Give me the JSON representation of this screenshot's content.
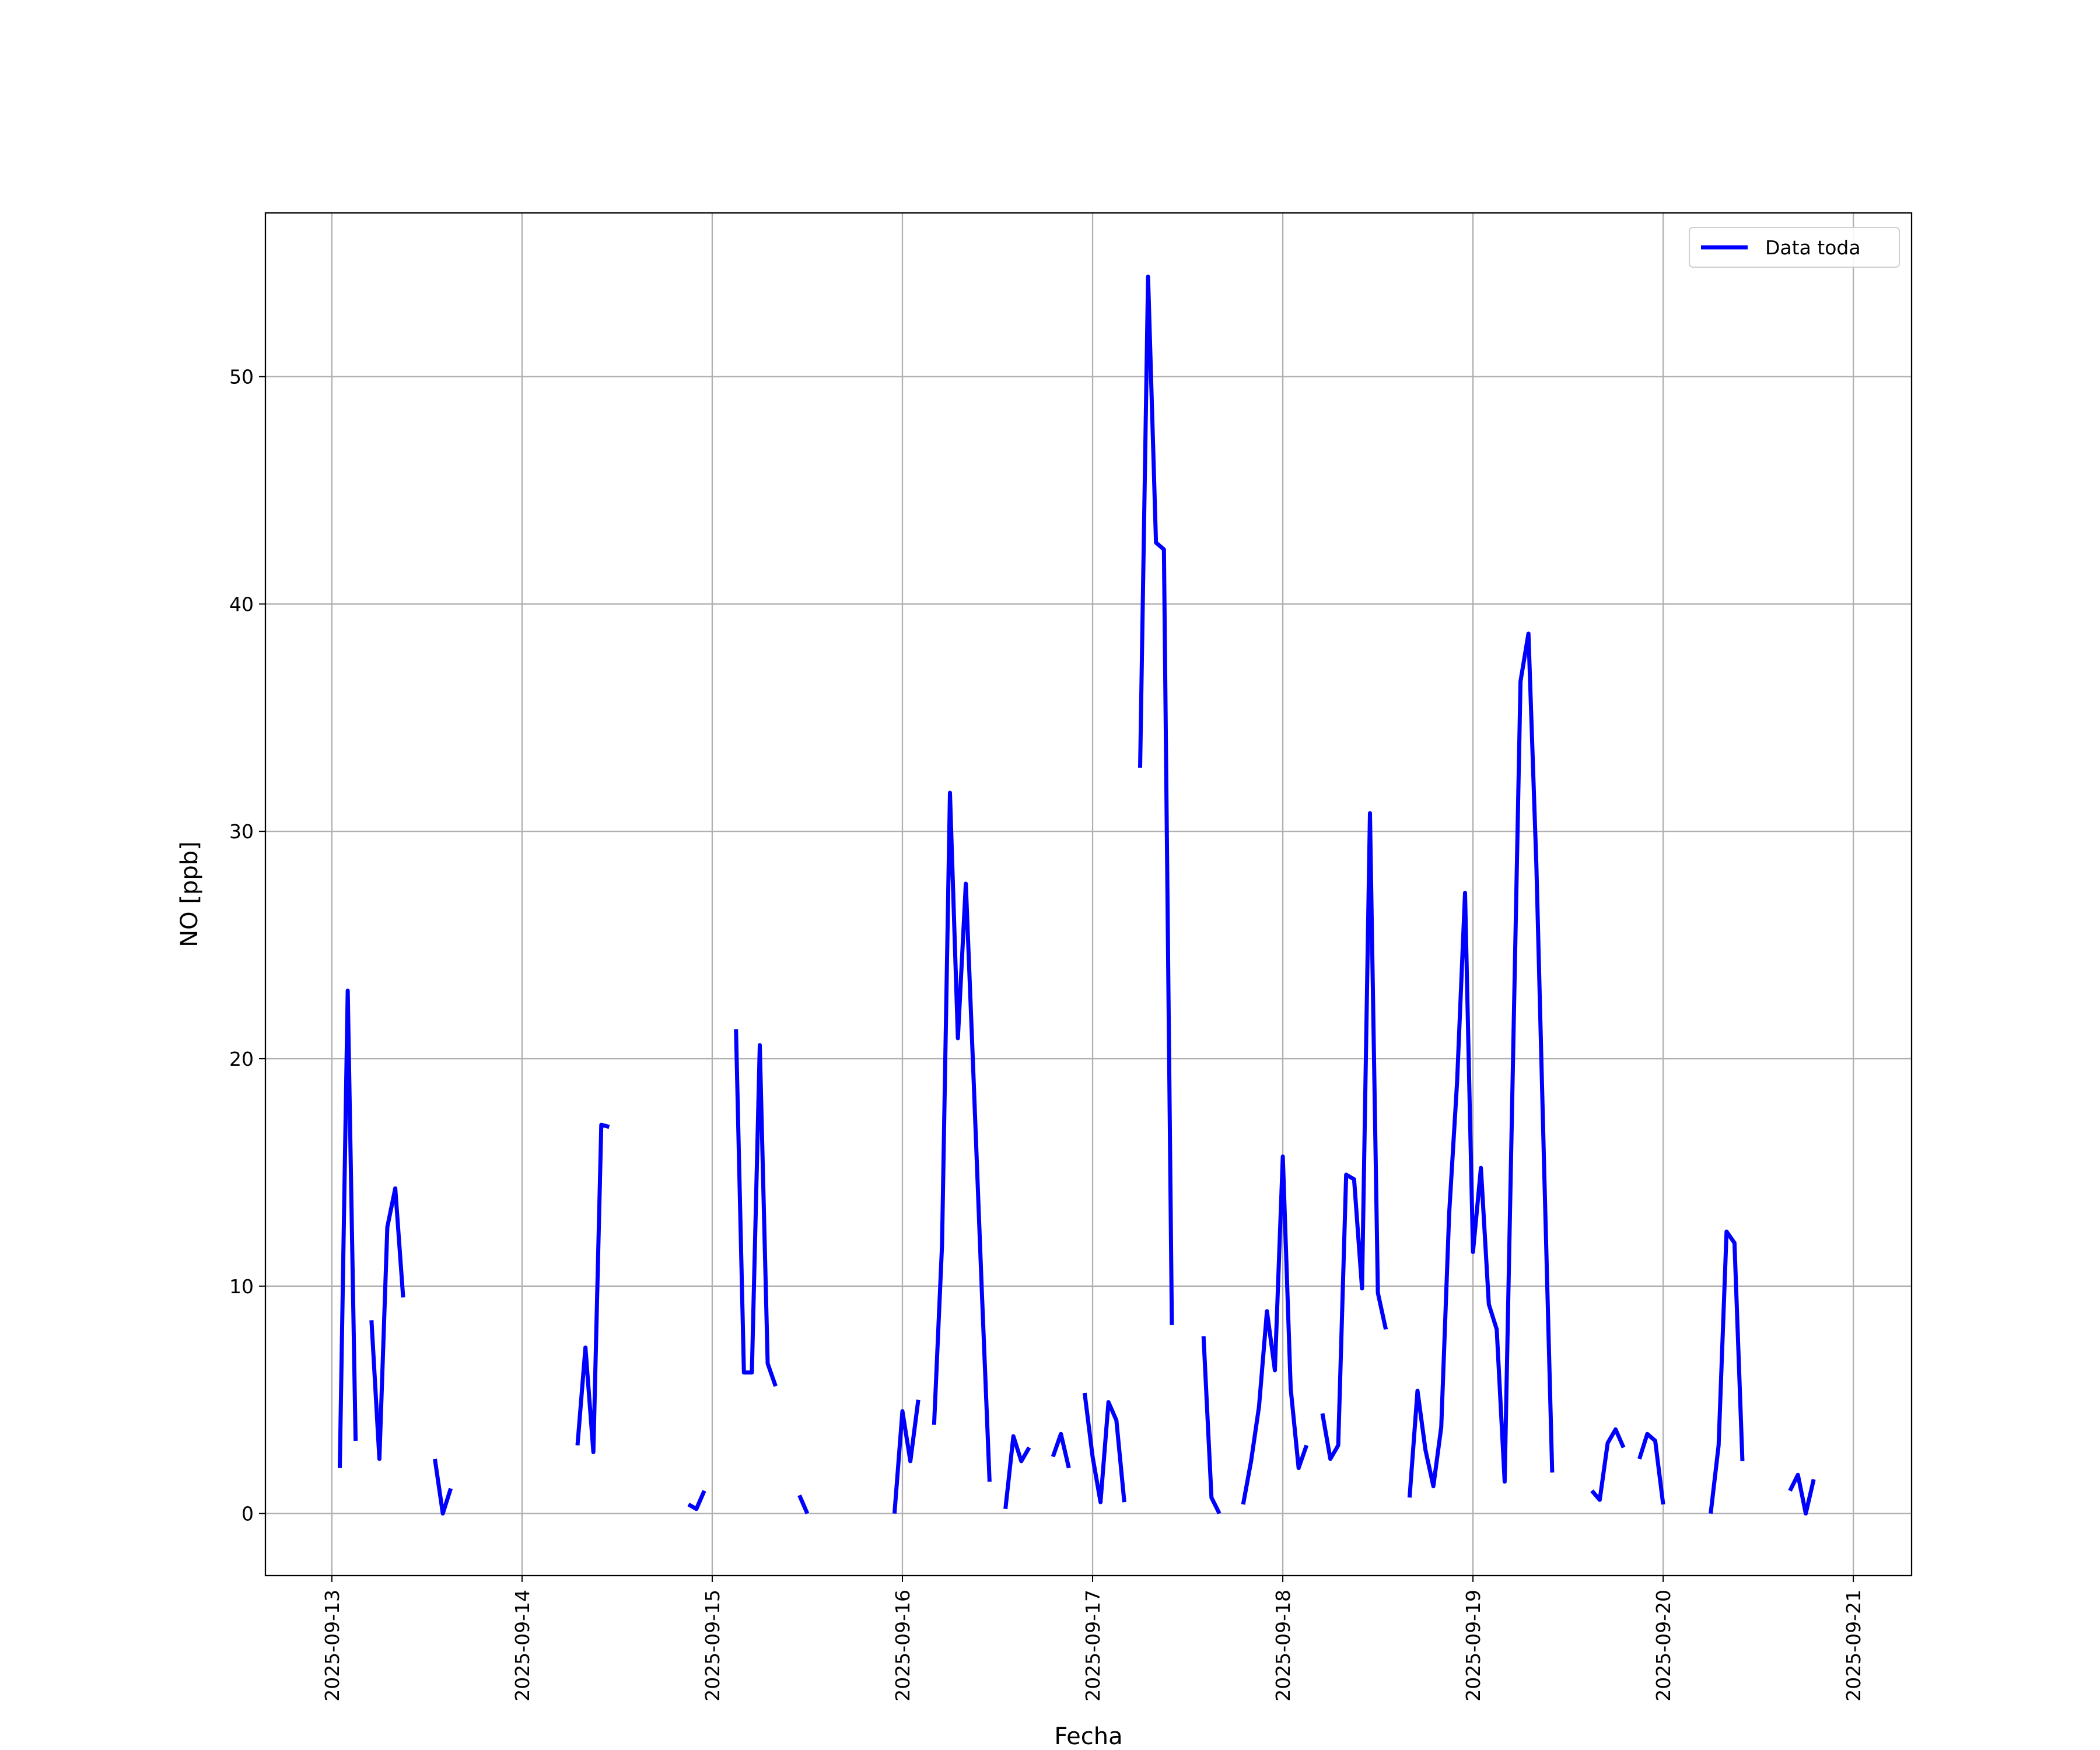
{
  "chart_data": {
    "type": "line",
    "xlabel": "Fecha",
    "ylabel": "NO [ppb]",
    "x": [
      "2025-09-13T01:00",
      "2025-09-13T02:00",
      "2025-09-13T03:00",
      "2025-09-13T04:00",
      "2025-09-13T05:00",
      "2025-09-13T06:00",
      "2025-09-13T07:00",
      "2025-09-13T08:00",
      "2025-09-13T09:00",
      "2025-09-13T11:00",
      "2025-09-13T13:00",
      "2025-09-13T14:00",
      "2025-09-13T15:00",
      "2025-09-13T20:00",
      "2025-09-14T07:00",
      "2025-09-14T08:00",
      "2025-09-14T09:00",
      "2025-09-14T10:00",
      "2025-09-14T11:00",
      "2025-09-14T16:00",
      "2025-09-14T21:00",
      "2025-09-14T22:00",
      "2025-09-14T23:00",
      "2025-09-15T01:00",
      "2025-09-15T03:00",
      "2025-09-15T04:00",
      "2025-09-15T05:00",
      "2025-09-15T06:00",
      "2025-09-15T07:00",
      "2025-09-15T08:00",
      "2025-09-15T09:00",
      "2025-09-15T11:00",
      "2025-09-15T12:00",
      "2025-09-15T18:00",
      "2025-09-15T23:00",
      "2025-09-16T00:00",
      "2025-09-16T01:00",
      "2025-09-16T02:00",
      "2025-09-16T03:00",
      "2025-09-16T04:00",
      "2025-09-16T05:00",
      "2025-09-16T06:00",
      "2025-09-16T07:00",
      "2025-09-16T08:00",
      "2025-09-16T09:00",
      "2025-09-16T10:00",
      "2025-09-16T11:00",
      "2025-09-16T12:00",
      "2025-09-16T13:00",
      "2025-09-16T14:00",
      "2025-09-16T15:00",
      "2025-09-16T16:00",
      "2025-09-16T17:00",
      "2025-09-16T19:00",
      "2025-09-16T20:00",
      "2025-09-16T21:00",
      "2025-09-16T22:00",
      "2025-09-16T23:00",
      "2025-09-17T00:00",
      "2025-09-17T01:00",
      "2025-09-17T02:00",
      "2025-09-17T03:00",
      "2025-09-17T04:00",
      "2025-09-17T05:00",
      "2025-09-17T06:00",
      "2025-09-17T07:00",
      "2025-09-17T08:00",
      "2025-09-17T09:00",
      "2025-09-17T10:00",
      "2025-09-17T12:00",
      "2025-09-17T14:00",
      "2025-09-17T15:00",
      "2025-09-17T16:00",
      "2025-09-17T17:00",
      "2025-09-17T19:00",
      "2025-09-17T20:00",
      "2025-09-17T21:00",
      "2025-09-17T22:00",
      "2025-09-17T23:00",
      "2025-09-18T00:00",
      "2025-09-18T01:00",
      "2025-09-18T02:00",
      "2025-09-18T03:00",
      "2025-09-18T04:00",
      "2025-09-18T05:00",
      "2025-09-18T06:00",
      "2025-09-18T07:00",
      "2025-09-18T08:00",
      "2025-09-18T09:00",
      "2025-09-18T10:00",
      "2025-09-18T11:00",
      "2025-09-18T12:00",
      "2025-09-18T13:00",
      "2025-09-18T14:00",
      "2025-09-18T16:00",
      "2025-09-18T17:00",
      "2025-09-18T18:00",
      "2025-09-18T19:00",
      "2025-09-18T20:00",
      "2025-09-18T21:00",
      "2025-09-18T22:00",
      "2025-09-18T23:00",
      "2025-09-19T00:00",
      "2025-09-19T01:00",
      "2025-09-19T02:00",
      "2025-09-19T03:00",
      "2025-09-19T04:00",
      "2025-09-19T05:00",
      "2025-09-19T06:00",
      "2025-09-19T07:00",
      "2025-09-19T08:00",
      "2025-09-19T09:00",
      "2025-09-19T10:00",
      "2025-09-19T12:00",
      "2025-09-19T15:00",
      "2025-09-19T16:00",
      "2025-09-19T17:00",
      "2025-09-19T18:00",
      "2025-09-19T19:00",
      "2025-09-19T20:00",
      "2025-09-19T21:00",
      "2025-09-19T22:00",
      "2025-09-19T23:00",
      "2025-09-20T00:00",
      "2025-09-20T03:00",
      "2025-09-20T06:00",
      "2025-09-20T07:00",
      "2025-09-20T08:00",
      "2025-09-20T09:00",
      "2025-09-20T10:00",
      "2025-09-20T13:00",
      "2025-09-20T16:00",
      "2025-09-20T17:00",
      "2025-09-20T18:00",
      "2025-09-20T19:00"
    ],
    "series": [
      {
        "name": "Data toda",
        "color": "#0000ff",
        "values": [
          2.0,
          23.0,
          3.2,
          null,
          8.5,
          2.4,
          12.6,
          14.3,
          9.5,
          null,
          2.4,
          0.0,
          1.1,
          null,
          3.0,
          7.3,
          2.7,
          17.1,
          17.0,
          null,
          0.4,
          0.2,
          1.0,
          null,
          21.3,
          6.2,
          6.2,
          20.6,
          6.6,
          5.6,
          null,
          0.8,
          0.0,
          null,
          0.0,
          4.5,
          2.3,
          5.0,
          null,
          3.9,
          11.8,
          31.7,
          20.9,
          27.7,
          19.0,
          10.0,
          1.4,
          null,
          0.2,
          3.4,
          2.3,
          2.9,
          null,
          2.5,
          3.5,
          2.0,
          null,
          5.3,
          2.5,
          0.5,
          4.9,
          4.1,
          0.5,
          null,
          32.8,
          54.4,
          42.7,
          42.4,
          8.3,
          null,
          7.8,
          0.7,
          0.0,
          null,
          0.4,
          2.3,
          4.7,
          8.9,
          6.3,
          15.7,
          5.5,
          2.0,
          3.0,
          null,
          4.4,
          2.4,
          3.0,
          14.9,
          14.7,
          9.9,
          30.8,
          9.7,
          8.1,
          null,
          0.7,
          5.4,
          2.8,
          1.2,
          3.8,
          13.2,
          19.0,
          27.3,
          11.5,
          15.2,
          9.2,
          8.1,
          1.4,
          19.0,
          36.6,
          38.7,
          28.5,
          15.0,
          1.8,
          null,
          1.0,
          0.6,
          3.1,
          3.7,
          2.9,
          null,
          2.4,
          3.5,
          3.2,
          0.4,
          null,
          0.0,
          3.0,
          12.4,
          11.9,
          2.3,
          null,
          1.0,
          1.7,
          0.0,
          1.5
        ]
      }
    ],
    "xlim": [
      "2025-09-12T15:37",
      "2025-09-21T07:21"
    ],
    "xticks": [
      "2025-09-13",
      "2025-09-14",
      "2025-09-15",
      "2025-09-16",
      "2025-09-17",
      "2025-09-18",
      "2025-09-19",
      "2025-09-20",
      "2025-09-21"
    ],
    "ylim": [
      -2.73,
      57.2
    ],
    "yticks": [
      0,
      10,
      20,
      30,
      40,
      50
    ],
    "grid": true,
    "legend": "upper right"
  }
}
